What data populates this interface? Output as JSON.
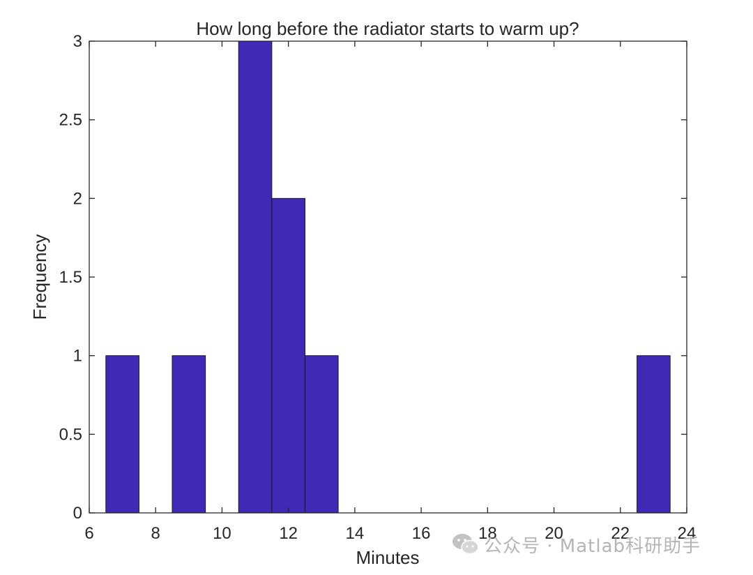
{
  "chart_data": {
    "type": "bar",
    "subtype": "histogram",
    "title": "How long before the radiator starts to warm up?",
    "xlabel": "Minutes",
    "ylabel": "Frequency",
    "xlim": [
      6,
      24
    ],
    "ylim": [
      0,
      3
    ],
    "bin_width": 1,
    "bins": [
      {
        "x0": 6.5,
        "x1": 7.5,
        "value": 1
      },
      {
        "x0": 7.5,
        "x1": 8.5,
        "value": 0
      },
      {
        "x0": 8.5,
        "x1": 9.5,
        "value": 1
      },
      {
        "x0": 9.5,
        "x1": 10.5,
        "value": 0
      },
      {
        "x0": 10.5,
        "x1": 11.5,
        "value": 3
      },
      {
        "x0": 11.5,
        "x1": 12.5,
        "value": 2
      },
      {
        "x0": 12.5,
        "x1": 13.5,
        "value": 1
      },
      {
        "x0": 13.5,
        "x1": 14.5,
        "value": 0
      },
      {
        "x0": 14.5,
        "x1": 15.5,
        "value": 0
      },
      {
        "x0": 15.5,
        "x1": 16.5,
        "value": 0
      },
      {
        "x0": 16.5,
        "x1": 17.5,
        "value": 0
      },
      {
        "x0": 17.5,
        "x1": 18.5,
        "value": 0
      },
      {
        "x0": 18.5,
        "x1": 19.5,
        "value": 0
      },
      {
        "x0": 19.5,
        "x1": 20.5,
        "value": 0
      },
      {
        "x0": 20.5,
        "x1": 21.5,
        "value": 0
      },
      {
        "x0": 21.5,
        "x1": 22.5,
        "value": 0
      },
      {
        "x0": 22.5,
        "x1": 23.5,
        "value": 1
      }
    ],
    "xticks": [
      "6",
      "8",
      "10",
      "12",
      "14",
      "16",
      "18",
      "20",
      "22",
      "24"
    ],
    "yticks": [
      "0",
      "0.5",
      "1",
      "1.5",
      "2",
      "2.5",
      "3"
    ],
    "grid": false,
    "bar_color": "#3F29B5",
    "edge_color": "#1a1a1a"
  },
  "watermark": {
    "text": "公众号 · Matlab科研助手",
    "icon": "wechat-icon"
  }
}
